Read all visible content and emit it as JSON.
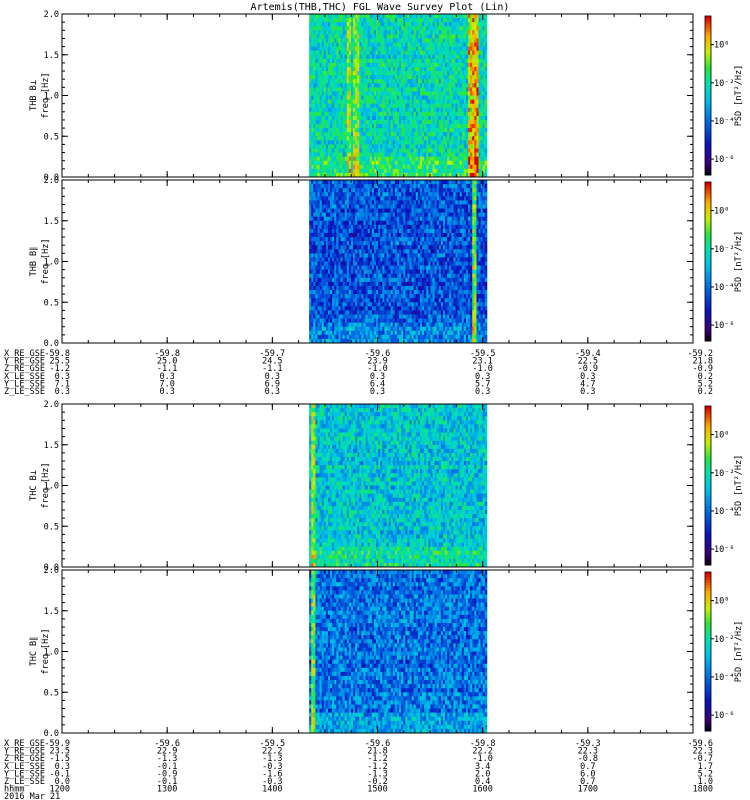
{
  "chart_data": {
    "type": "heatmap",
    "title": "Artemis(THB,THC) FGL Wave Survey Plot (Lin)",
    "panels": [
      {
        "id": "thb-bperp",
        "probe": "THB",
        "label": "THB B⊥",
        "ylabel": "freq [Hz]",
        "ylim": [
          0,
          2
        ],
        "yticks": [
          "0.0",
          "0.5",
          "1.0",
          "1.5",
          "2.0"
        ],
        "cb_label": "PSD [nT²/Hz]",
        "cb_ticks": [
          "10⁰",
          "10⁻²",
          "10⁻⁴",
          "10⁻⁶"
        ],
        "data_range_hours": [
          1435,
          1604
        ],
        "base_level": 0.55,
        "line_level": 0.35,
        "spikes": [
          [
            0.22,
            0.74
          ],
          [
            0.26,
            0.72
          ],
          [
            0.9,
            0.82
          ],
          [
            0.93,
            0.86
          ]
        ]
      },
      {
        "id": "thb-bpar",
        "probe": "THB",
        "label": "THB B∥",
        "ylabel": "freq [Hz]",
        "ylim": [
          0,
          2
        ],
        "yticks": [
          "0.0",
          "0.5",
          "1.0",
          "1.5",
          "2.0"
        ],
        "cb_label": "PSD [nT²/Hz]",
        "cb_ticks": [
          "10⁰",
          "10⁻²",
          "10⁻⁴",
          "10⁻⁶"
        ],
        "data_range_hours": [
          1435,
          1604
        ],
        "base_level": 0.3,
        "line_level": 0.12,
        "spikes": [
          [
            0.92,
            0.72
          ]
        ]
      },
      {
        "id": "thc-bperp",
        "probe": "THC",
        "label": "THC B⊥",
        "ylabel": "freq [Hz]",
        "ylim": [
          0,
          2
        ],
        "yticks": [
          "0.0",
          "0.5",
          "1.0",
          "1.5",
          "2.0"
        ],
        "cb_label": "PSD [nT²/Hz]",
        "cb_ticks": [
          "10⁰",
          "10⁻²",
          "10⁻⁴",
          "10⁻⁶"
        ],
        "data_range_hours": [
          1435,
          1604
        ],
        "base_level": 0.5,
        "line_level": 0.3,
        "spikes": [
          [
            0.02,
            0.72
          ]
        ]
      },
      {
        "id": "thc-bpar",
        "probe": "THC",
        "label": "THC B∥",
        "ylabel": "freq [Hz]",
        "ylim": [
          0,
          2
        ],
        "yticks": [
          "0.0",
          "0.5",
          "1.0",
          "1.5",
          "2.0"
        ],
        "cb_label": "PSD [nT²/Hz]",
        "cb_ticks": [
          "10⁰",
          "10⁻²",
          "10⁻⁴",
          "10⁻⁶"
        ],
        "data_range_hours": [
          1435,
          1604
        ],
        "base_level": 0.35,
        "line_level": 0.15,
        "spikes": [
          [
            0.02,
            0.68
          ]
        ]
      }
    ],
    "colormap": "rainbow",
    "ephemeris_thb": {
      "labels": [
        "X_RE_GSE",
        "Y_RE_GSE",
        "Z_RE_GSE",
        "X_LE_SSE",
        "Y_LE_SSE",
        "Z_LE_SSE"
      ],
      "rows": [
        [
          "-59.8",
          "-59.8",
          "-59.7",
          "-59.6",
          "-59.5",
          "-59.4",
          "-59.2"
        ],
        [
          "25.5",
          "25.0",
          "24.5",
          "23.9",
          "23.1",
          "22.5",
          "21.8"
        ],
        [
          "-1.2",
          "-1.1",
          "-1.1",
          "-1.0",
          "-1.0",
          "-0.9",
          "-0.9"
        ],
        [
          "0.3",
          "0.3",
          "0.3",
          "0.3",
          "0.3",
          "0.3",
          "0.2"
        ],
        [
          "7.1",
          "7.0",
          "6.9",
          "6.4",
          "5.7",
          "4.7",
          "5.2"
        ],
        [
          "0.3",
          "0.3",
          "0.3",
          "0.3",
          "0.3",
          "0.3",
          "0.2"
        ]
      ]
    },
    "ephemeris_thc": {
      "labels": [
        "X_RE_GSE",
        "Y_RE_GSE",
        "Z_RE_GSE",
        "X_LE_SSE",
        "Y_LE_SSE",
        "Z_LE_SSE",
        "hhmm",
        "2016 Mar 21"
      ],
      "rows": [
        [
          "-59.9",
          "-59.6",
          "-59.5",
          "-59.6",
          "-59.8",
          "-59.3",
          "-59.6"
        ],
        [
          "23.5",
          "22.9",
          "22.2",
          "21.8",
          "22.2",
          "22.3",
          "22.3"
        ],
        [
          "-1.5",
          "-1.3",
          "-1.3",
          "-1.2",
          "-1.0",
          "-0.8",
          "-0.7"
        ],
        [
          "0.3",
          "-0.1",
          "-0.3",
          "-1.2",
          "3.4",
          "0.7",
          "1.7"
        ],
        [
          "-0.1",
          "-0.9",
          "-1.6",
          "-1.3",
          "2.0",
          "6.0",
          "5.2"
        ],
        [
          "0.0",
          "-0.1",
          "-0.3",
          "-0.2",
          "0.4",
          "0.7",
          "1.0"
        ],
        [
          "1200",
          "1300",
          "1400",
          "1500",
          "1600",
          "1700",
          "1800"
        ]
      ]
    }
  }
}
